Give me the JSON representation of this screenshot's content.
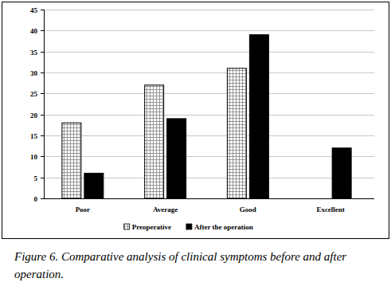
{
  "chart_data": {
    "type": "bar",
    "title": "Figure 6. Comparative analysis of clinical symptoms before and after operation.",
    "categories": [
      "Poor",
      "Average",
      "Good",
      "Excellent"
    ],
    "series": [
      {
        "name": "Preoperative",
        "color": "#808080",
        "values": [
          18,
          27,
          31,
          0
        ]
      },
      {
        "name": "After the operation",
        "color": "#000000",
        "values": [
          6,
          19,
          39,
          12
        ]
      }
    ],
    "ylim": [
      0,
      45
    ],
    "yticks": [
      0,
      5,
      10,
      15,
      20,
      25,
      30,
      35,
      40,
      45
    ],
    "grid": true,
    "legend": "bottom"
  }
}
